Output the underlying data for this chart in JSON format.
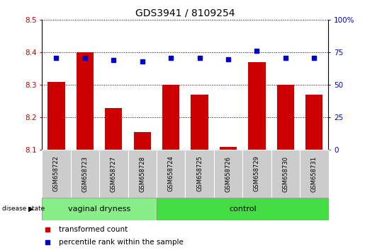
{
  "title": "GDS3941 / 8109254",
  "samples": [
    "GSM658722",
    "GSM658723",
    "GSM658727",
    "GSM658728",
    "GSM658724",
    "GSM658725",
    "GSM658726",
    "GSM658729",
    "GSM658730",
    "GSM658731"
  ],
  "red_values": [
    8.31,
    8.4,
    8.23,
    8.155,
    8.3,
    8.27,
    8.11,
    8.37,
    8.3,
    8.27
  ],
  "blue_values": [
    71,
    71,
    69,
    68,
    71,
    71,
    70,
    76,
    71,
    71
  ],
  "ylim_left": [
    8.1,
    8.5
  ],
  "ylim_right": [
    0,
    100
  ],
  "yticks_left": [
    8.1,
    8.2,
    8.3,
    8.4,
    8.5
  ],
  "yticks_right": [
    0,
    25,
    50,
    75,
    100
  ],
  "group1_label": "vaginal dryness",
  "group2_label": "control",
  "group1_count": 4,
  "group2_count": 6,
  "legend_red": "transformed count",
  "legend_blue": "percentile rank within the sample",
  "group_label": "disease state",
  "bar_color": "#cc0000",
  "dot_color": "#0000cc",
  "group1_color": "#88ee88",
  "group2_color": "#44dd44",
  "sample_box_color": "#cccccc",
  "bar_width": 0.6,
  "title_fontsize": 10,
  "tick_fontsize": 7.5,
  "label_fontsize": 8,
  "sample_fontsize": 6,
  "legend_fontsize": 7.5
}
